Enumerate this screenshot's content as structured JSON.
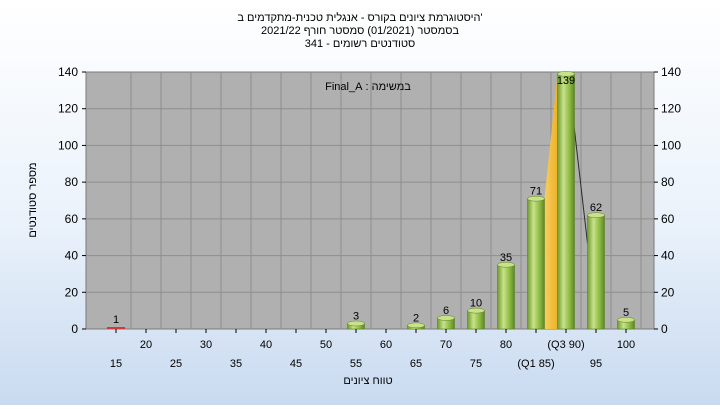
{
  "chart_data": {
    "type": "bar",
    "title_lines": [
      "היסטוגרמת ציונים בקורס - אנגלית טכנית-מתקדמים ב'",
      "בסמסטר  (01/2021)  סמסטר חורף 2021/22",
      "סטודנטים רשומים - 341"
    ],
    "annotation": "במשימה : Final_A",
    "xlabel": "טווח ציונים",
    "ylabel": "מספר סטודנטים",
    "ylim": [
      0,
      140
    ],
    "yticks": [
      0,
      20,
      40,
      60,
      80,
      100,
      120,
      140
    ],
    "categories": [
      "15",
      "20",
      "25",
      "30",
      "35",
      "40",
      "45",
      "50",
      "55",
      "60",
      "65",
      "70",
      "75",
      "80",
      "85",
      "90",
      "95",
      "100"
    ],
    "tick_label_rows": {
      "upper": [
        "20",
        "30",
        "40",
        "50",
        "60",
        "70",
        "80",
        "(Q3 90)",
        "100"
      ],
      "lower": [
        "15",
        "25",
        "35",
        "45",
        "55",
        "65",
        "75",
        "(Q1 85)",
        "95"
      ]
    },
    "values": [
      1,
      0,
      0,
      0,
      0,
      0,
      0,
      0,
      3,
      0,
      2,
      6,
      10,
      35,
      71,
      139,
      62,
      5
    ],
    "data_labels": {
      "15": "1",
      "55": "3",
      "65": "2",
      "70": "6",
      "75": "10",
      "80": "35",
      "85": "71",
      "90": "139",
      "95": "62",
      "100": "5"
    },
    "quartile_band": {
      "from": "85",
      "to": "90",
      "label_q1": "(Q1 85)",
      "label_q3": "(Q3 90)"
    },
    "grid": true,
    "legend": "none",
    "colors": {
      "bar": "#8fbc45",
      "bar_highlight": "#c9e28a",
      "bar_first": "#d23a3a",
      "band": "#f7c43c",
      "plot_bg": "#b0b0b0",
      "grid": "#8e8e8e"
    }
  }
}
